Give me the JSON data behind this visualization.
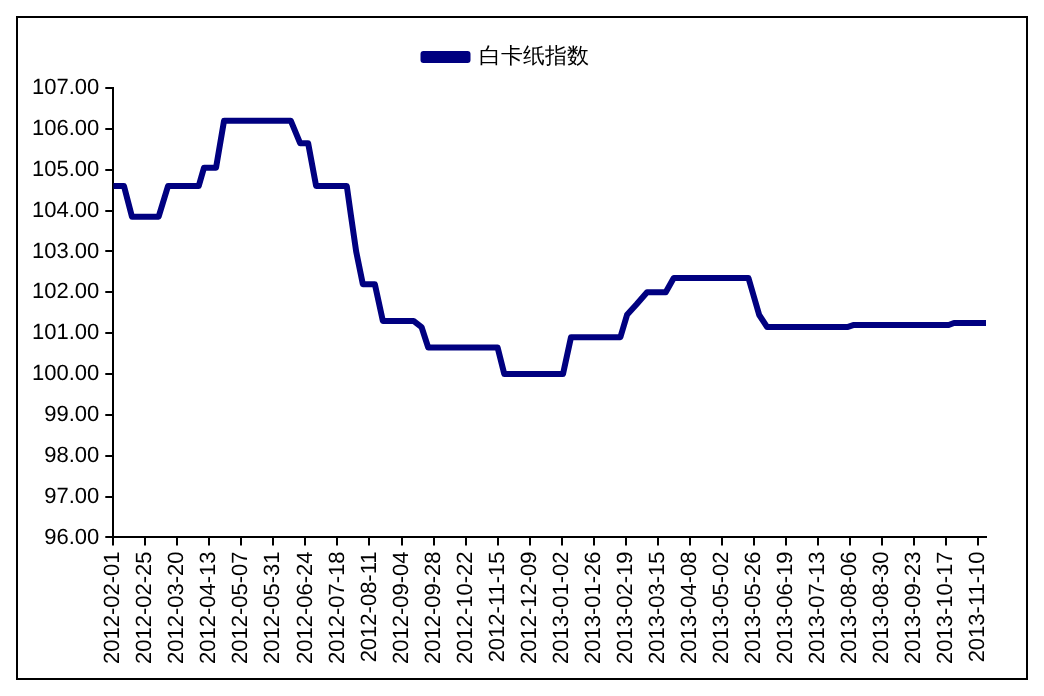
{
  "chart_data": {
    "type": "line",
    "legend": "top",
    "grid": false,
    "marker": "none",
    "line_style": "solid",
    "x": [
      "2012-02-01",
      "2012-02-09",
      "2012-02-15",
      "2012-03-06",
      "2012-03-13",
      "2012-04-05",
      "2012-04-09",
      "2012-04-18",
      "2012-04-24",
      "2012-06-13",
      "2012-06-20",
      "2012-06-26",
      "2012-07-02",
      "2012-07-25",
      "2012-07-28",
      "2012-08-01",
      "2012-08-06",
      "2012-08-15",
      "2012-08-21",
      "2012-09-13",
      "2012-09-19",
      "2012-09-24",
      "2012-11-15",
      "2012-11-20",
      "2013-01-03",
      "2013-01-09",
      "2013-02-15",
      "2013-02-20",
      "2013-02-27",
      "2013-03-07",
      "2013-03-21",
      "2013-03-27",
      "2013-05-22",
      "2013-05-30",
      "2013-06-05",
      "2013-08-04",
      "2013-08-09",
      "2013-10-19",
      "2013-10-23",
      "2013-11-16"
    ],
    "series": [
      {
        "name": "白卡纸指数",
        "color": "#000080",
        "values": [
          104.6,
          104.6,
          103.85,
          103.85,
          104.6,
          104.6,
          105.05,
          105.05,
          106.2,
          106.2,
          105.65,
          105.65,
          104.6,
          104.6,
          103.9,
          103.0,
          102.2,
          102.2,
          101.3,
          101.3,
          101.15,
          100.65,
          100.65,
          100.0,
          100.0,
          100.9,
          100.9,
          101.45,
          101.7,
          102.0,
          102.0,
          102.35,
          102.35,
          101.45,
          101.15,
          101.15,
          101.2,
          101.2,
          101.25,
          101.25
        ]
      }
    ],
    "xlim": [
      "2012-02-01",
      "2013-11-16"
    ],
    "xticks": [
      "2012-02-01",
      "2012-02-25",
      "2012-03-20",
      "2012-04-13",
      "2012-05-07",
      "2012-05-31",
      "2012-06-24",
      "2012-07-18",
      "2012-08-11",
      "2012-09-04",
      "2012-09-28",
      "2012-10-22",
      "2012-11-15",
      "2012-12-09",
      "2013-01-02",
      "2013-01-26",
      "2013-02-19",
      "2013-03-15",
      "2013-04-08",
      "2013-05-02",
      "2013-05-26",
      "2013-06-19",
      "2013-07-13",
      "2013-08-06",
      "2013-08-30",
      "2013-09-23",
      "2013-10-17",
      "2013-11-10"
    ],
    "ylim": [
      96,
      107
    ],
    "yticks": [
      {
        "value": 96,
        "label": "96.00"
      },
      {
        "value": 97,
        "label": "97.00"
      },
      {
        "value": 98,
        "label": "98.00"
      },
      {
        "value": 99,
        "label": "99.00"
      },
      {
        "value": 100,
        "label": "100.00"
      },
      {
        "value": 101,
        "label": "101.00"
      },
      {
        "value": 102,
        "label": "102.00"
      },
      {
        "value": 103,
        "label": "103.00"
      },
      {
        "value": 104,
        "label": "104.00"
      },
      {
        "value": 105,
        "label": "105.00"
      },
      {
        "value": 106,
        "label": "106.00"
      },
      {
        "value": 107,
        "label": "107.00"
      }
    ]
  }
}
